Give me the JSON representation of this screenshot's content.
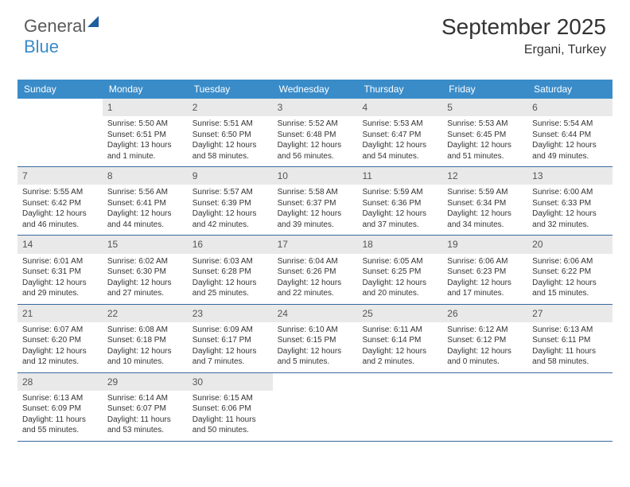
{
  "logo": {
    "part1": "General",
    "part2": "Blue"
  },
  "title": "September 2025",
  "location": "Ergani, Turkey",
  "colors": {
    "header_bg": "#3a8cc9",
    "daynum_bg": "#e9e9e9",
    "week_border": "#3a6a9e",
    "text": "#333333",
    "logo_gray": "#5a5a5a",
    "logo_blue": "#3a8cc9"
  },
  "daysOfWeek": [
    "Sunday",
    "Monday",
    "Tuesday",
    "Wednesday",
    "Thursday",
    "Friday",
    "Saturday"
  ],
  "weeks": [
    [
      {
        "empty": true
      },
      {
        "num": "1",
        "sunrise": "Sunrise: 5:50 AM",
        "sunset": "Sunset: 6:51 PM",
        "day1": "Daylight: 13 hours",
        "day2": "and 1 minute."
      },
      {
        "num": "2",
        "sunrise": "Sunrise: 5:51 AM",
        "sunset": "Sunset: 6:50 PM",
        "day1": "Daylight: 12 hours",
        "day2": "and 58 minutes."
      },
      {
        "num": "3",
        "sunrise": "Sunrise: 5:52 AM",
        "sunset": "Sunset: 6:48 PM",
        "day1": "Daylight: 12 hours",
        "day2": "and 56 minutes."
      },
      {
        "num": "4",
        "sunrise": "Sunrise: 5:53 AM",
        "sunset": "Sunset: 6:47 PM",
        "day1": "Daylight: 12 hours",
        "day2": "and 54 minutes."
      },
      {
        "num": "5",
        "sunrise": "Sunrise: 5:53 AM",
        "sunset": "Sunset: 6:45 PM",
        "day1": "Daylight: 12 hours",
        "day2": "and 51 minutes."
      },
      {
        "num": "6",
        "sunrise": "Sunrise: 5:54 AM",
        "sunset": "Sunset: 6:44 PM",
        "day1": "Daylight: 12 hours",
        "day2": "and 49 minutes."
      }
    ],
    [
      {
        "num": "7",
        "sunrise": "Sunrise: 5:55 AM",
        "sunset": "Sunset: 6:42 PM",
        "day1": "Daylight: 12 hours",
        "day2": "and 46 minutes."
      },
      {
        "num": "8",
        "sunrise": "Sunrise: 5:56 AM",
        "sunset": "Sunset: 6:41 PM",
        "day1": "Daylight: 12 hours",
        "day2": "and 44 minutes."
      },
      {
        "num": "9",
        "sunrise": "Sunrise: 5:57 AM",
        "sunset": "Sunset: 6:39 PM",
        "day1": "Daylight: 12 hours",
        "day2": "and 42 minutes."
      },
      {
        "num": "10",
        "sunrise": "Sunrise: 5:58 AM",
        "sunset": "Sunset: 6:37 PM",
        "day1": "Daylight: 12 hours",
        "day2": "and 39 minutes."
      },
      {
        "num": "11",
        "sunrise": "Sunrise: 5:59 AM",
        "sunset": "Sunset: 6:36 PM",
        "day1": "Daylight: 12 hours",
        "day2": "and 37 minutes."
      },
      {
        "num": "12",
        "sunrise": "Sunrise: 5:59 AM",
        "sunset": "Sunset: 6:34 PM",
        "day1": "Daylight: 12 hours",
        "day2": "and 34 minutes."
      },
      {
        "num": "13",
        "sunrise": "Sunrise: 6:00 AM",
        "sunset": "Sunset: 6:33 PM",
        "day1": "Daylight: 12 hours",
        "day2": "and 32 minutes."
      }
    ],
    [
      {
        "num": "14",
        "sunrise": "Sunrise: 6:01 AM",
        "sunset": "Sunset: 6:31 PM",
        "day1": "Daylight: 12 hours",
        "day2": "and 29 minutes."
      },
      {
        "num": "15",
        "sunrise": "Sunrise: 6:02 AM",
        "sunset": "Sunset: 6:30 PM",
        "day1": "Daylight: 12 hours",
        "day2": "and 27 minutes."
      },
      {
        "num": "16",
        "sunrise": "Sunrise: 6:03 AM",
        "sunset": "Sunset: 6:28 PM",
        "day1": "Daylight: 12 hours",
        "day2": "and 25 minutes."
      },
      {
        "num": "17",
        "sunrise": "Sunrise: 6:04 AM",
        "sunset": "Sunset: 6:26 PM",
        "day1": "Daylight: 12 hours",
        "day2": "and 22 minutes."
      },
      {
        "num": "18",
        "sunrise": "Sunrise: 6:05 AM",
        "sunset": "Sunset: 6:25 PM",
        "day1": "Daylight: 12 hours",
        "day2": "and 20 minutes."
      },
      {
        "num": "19",
        "sunrise": "Sunrise: 6:06 AM",
        "sunset": "Sunset: 6:23 PM",
        "day1": "Daylight: 12 hours",
        "day2": "and 17 minutes."
      },
      {
        "num": "20",
        "sunrise": "Sunrise: 6:06 AM",
        "sunset": "Sunset: 6:22 PM",
        "day1": "Daylight: 12 hours",
        "day2": "and 15 minutes."
      }
    ],
    [
      {
        "num": "21",
        "sunrise": "Sunrise: 6:07 AM",
        "sunset": "Sunset: 6:20 PM",
        "day1": "Daylight: 12 hours",
        "day2": "and 12 minutes."
      },
      {
        "num": "22",
        "sunrise": "Sunrise: 6:08 AM",
        "sunset": "Sunset: 6:18 PM",
        "day1": "Daylight: 12 hours",
        "day2": "and 10 minutes."
      },
      {
        "num": "23",
        "sunrise": "Sunrise: 6:09 AM",
        "sunset": "Sunset: 6:17 PM",
        "day1": "Daylight: 12 hours",
        "day2": "and 7 minutes."
      },
      {
        "num": "24",
        "sunrise": "Sunrise: 6:10 AM",
        "sunset": "Sunset: 6:15 PM",
        "day1": "Daylight: 12 hours",
        "day2": "and 5 minutes."
      },
      {
        "num": "25",
        "sunrise": "Sunrise: 6:11 AM",
        "sunset": "Sunset: 6:14 PM",
        "day1": "Daylight: 12 hours",
        "day2": "and 2 minutes."
      },
      {
        "num": "26",
        "sunrise": "Sunrise: 6:12 AM",
        "sunset": "Sunset: 6:12 PM",
        "day1": "Daylight: 12 hours",
        "day2": "and 0 minutes."
      },
      {
        "num": "27",
        "sunrise": "Sunrise: 6:13 AM",
        "sunset": "Sunset: 6:11 PM",
        "day1": "Daylight: 11 hours",
        "day2": "and 58 minutes."
      }
    ],
    [
      {
        "num": "28",
        "sunrise": "Sunrise: 6:13 AM",
        "sunset": "Sunset: 6:09 PM",
        "day1": "Daylight: 11 hours",
        "day2": "and 55 minutes."
      },
      {
        "num": "29",
        "sunrise": "Sunrise: 6:14 AM",
        "sunset": "Sunset: 6:07 PM",
        "day1": "Daylight: 11 hours",
        "day2": "and 53 minutes."
      },
      {
        "num": "30",
        "sunrise": "Sunrise: 6:15 AM",
        "sunset": "Sunset: 6:06 PM",
        "day1": "Daylight: 11 hours",
        "day2": "and 50 minutes."
      },
      {
        "empty": true
      },
      {
        "empty": true
      },
      {
        "empty": true
      },
      {
        "empty": true
      }
    ]
  ]
}
